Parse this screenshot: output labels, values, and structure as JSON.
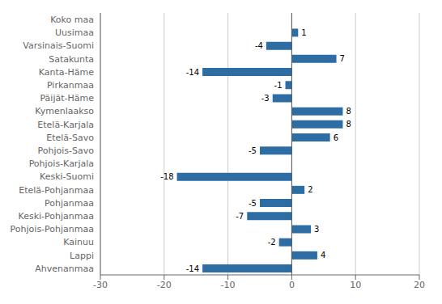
{
  "chart_data": {
    "type": "bar",
    "orientation": "horizontal",
    "categories": [
      "Koko maa",
      "Uusimaa",
      "Varsinais-Suomi",
      "Satakunta",
      "Kanta-Häme",
      "Pirkanmaa",
      "Päijät-Häme",
      "Kymenlaakso",
      "Etelä-Karjala",
      "Etelä-Savo",
      "Pohjois-Savo",
      "Pohjois-Karjala",
      "Keski-Suomi",
      "Etelä-Pohjanmaa",
      "Pohjanmaa",
      "Keski-Pohjanmaa",
      "Pohjois-Pohjanmaa",
      "Kainuu",
      "Lappi",
      "Ahvenanmaa"
    ],
    "values": [
      0,
      1,
      -4,
      7,
      -14,
      -1,
      -3,
      8,
      8,
      6,
      -5,
      0,
      -18,
      2,
      -5,
      -7,
      3,
      -2,
      4,
      -14
    ],
    "color": "#2E6DA4",
    "xlim": [
      -30,
      20
    ],
    "xticks": [
      -30,
      -20,
      -10,
      0,
      10,
      20
    ],
    "grid": true,
    "data_labels": true
  }
}
